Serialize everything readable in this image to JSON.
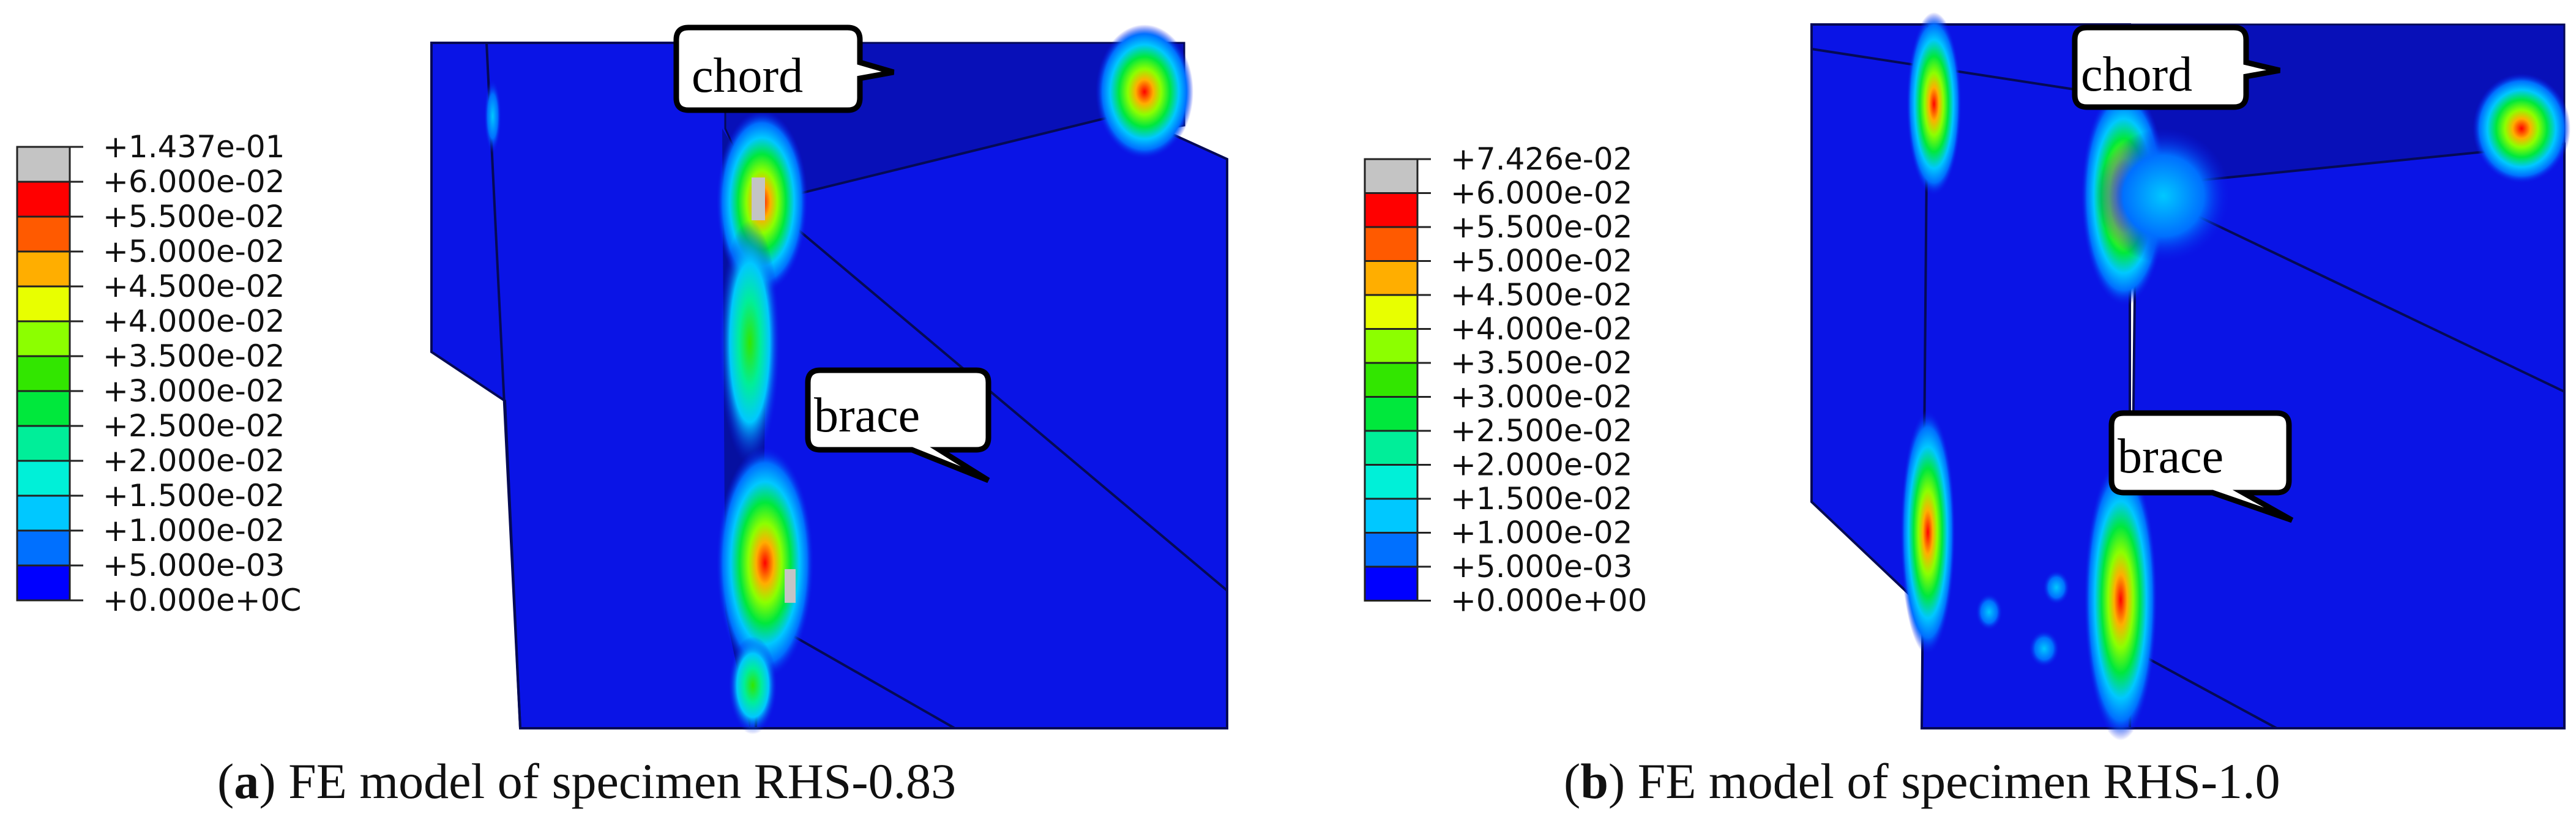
{
  "panels": [
    {
      "id": "a",
      "caption": {
        "letter": "a",
        "text": "FE model of specimen RHS-0.83"
      },
      "callouts": {
        "chord": "chord",
        "brace": "brace"
      },
      "legend": [
        {
          "label": "+1.437e-01",
          "color": "#c4c4c4"
        },
        {
          "label": "+6.000e-02",
          "color": "#ff0000"
        },
        {
          "label": "+5.500e-02",
          "color": "#ff5a00"
        },
        {
          "label": "+5.000e-02",
          "color": "#ffae00"
        },
        {
          "label": "+4.500e-02",
          "color": "#e8ff00"
        },
        {
          "label": "+4.000e-02",
          "color": "#8cff00"
        },
        {
          "label": "+3.500e-02",
          "color": "#32e600"
        },
        {
          "label": "+3.000e-02",
          "color": "#00e83c"
        },
        {
          "label": "+2.500e-02",
          "color": "#00ee99"
        },
        {
          "label": "+2.000e-02",
          "color": "#00f0d8"
        },
        {
          "label": "+1.500e-02",
          "color": "#00c8ff"
        },
        {
          "label": "+1.000e-02",
          "color": "#0070ff"
        },
        {
          "label": "+5.000e-03",
          "color": "#0000ff"
        },
        {
          "label": "+0.000e+0C",
          "color": null
        }
      ]
    },
    {
      "id": "b",
      "caption": {
        "letter": "b",
        "text": "FE model of specimen RHS-1.0"
      },
      "callouts": {
        "chord": "chord",
        "brace": "brace"
      },
      "legend": [
        {
          "label": "+7.426e-02",
          "color": "#c4c4c4"
        },
        {
          "label": "+6.000e-02",
          "color": "#ff0000"
        },
        {
          "label": "+5.500e-02",
          "color": "#ff5a00"
        },
        {
          "label": "+5.000e-02",
          "color": "#ffae00"
        },
        {
          "label": "+4.500e-02",
          "color": "#e8ff00"
        },
        {
          "label": "+4.000e-02",
          "color": "#8cff00"
        },
        {
          "label": "+3.500e-02",
          "color": "#32e600"
        },
        {
          "label": "+3.000e-02",
          "color": "#00e83c"
        },
        {
          "label": "+2.500e-02",
          "color": "#00ee99"
        },
        {
          "label": "+2.000e-02",
          "color": "#00f0d8"
        },
        {
          "label": "+1.500e-02",
          "color": "#00c8ff"
        },
        {
          "label": "+1.000e-02",
          "color": "#0070ff"
        },
        {
          "label": "+5.000e-03",
          "color": "#0000ff"
        },
        {
          "label": "+0.000e+00",
          "color": null
        }
      ]
    }
  ],
  "colors": {
    "model_base": "#0a14e6",
    "model_dark": "#0810b8",
    "edge": "#050a55"
  }
}
